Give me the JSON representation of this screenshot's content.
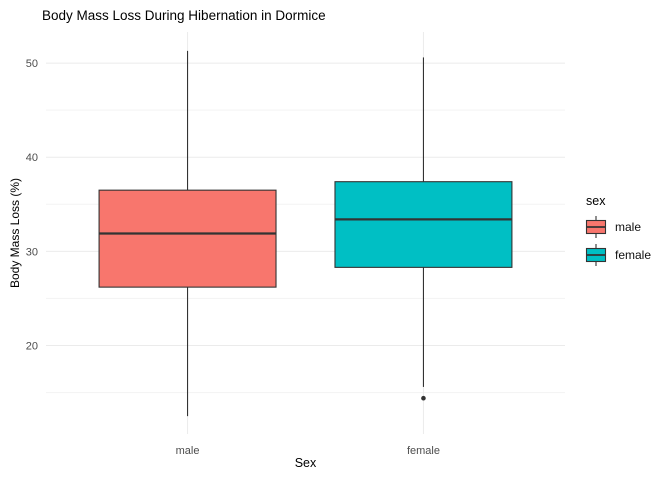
{
  "chart_data": {
    "type": "boxplot",
    "title": "Body Mass Loss During Hibernation in Dormice",
    "xlabel": "Sex",
    "ylabel": "Body Mass Loss (%)",
    "categories": [
      "male",
      "female"
    ],
    "ylim": [
      10.6,
      53.3
    ],
    "yticks_major": [
      20,
      30,
      40,
      50
    ],
    "yticks_minor": [
      15,
      25,
      35,
      45
    ],
    "grid": true,
    "legend": {
      "title": "sex",
      "position": "right",
      "entries": [
        {
          "label": "male",
          "color": "#F8766D"
        },
        {
          "label": "female",
          "color": "#00BFC4"
        }
      ]
    },
    "series": [
      {
        "name": "male",
        "fill": "#F8766D",
        "whisker_low": 12.5,
        "q1": 26.2,
        "median": 31.9,
        "q3": 36.5,
        "whisker_high": 51.3,
        "outliers": []
      },
      {
        "name": "female",
        "fill": "#00BFC4",
        "whisker_low": 15.6,
        "q1": 28.3,
        "median": 33.4,
        "q3": 37.4,
        "whisker_high": 50.6,
        "outliers": [
          14.4
        ]
      }
    ],
    "colors": {
      "stroke": "#333333",
      "grid_major": "#EBEBEB",
      "grid_minor": "#F3F3F3",
      "tick_label": "#4D4D4D",
      "outlier": "#333333"
    }
  }
}
